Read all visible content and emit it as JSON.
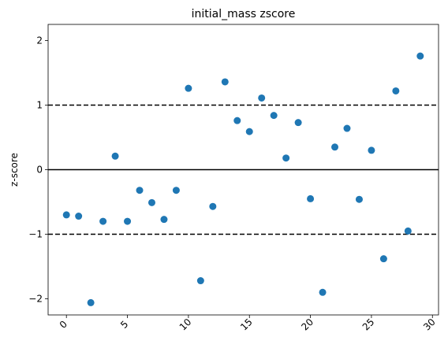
{
  "chart_data": {
    "type": "scatter",
    "title": "initial_mass zscore",
    "xlabel": "",
    "ylabel": "z-score",
    "xlim": [
      -1.5,
      30.5
    ],
    "ylim": [
      -2.25,
      2.25
    ],
    "xticks": [
      0,
      5,
      10,
      15,
      20,
      25,
      30
    ],
    "yticks": [
      -2,
      -1,
      0,
      1,
      2
    ],
    "xtick_rotation": 45,
    "grid": false,
    "reference_lines": [
      {
        "y": 0,
        "style": "solid"
      },
      {
        "y": 1,
        "style": "dashed"
      },
      {
        "y": -1,
        "style": "dashed"
      }
    ],
    "series": [
      {
        "color": "#1f77b4",
        "x": [
          0,
          1,
          2,
          3,
          4,
          5,
          6,
          7,
          8,
          9,
          10,
          11,
          12,
          13,
          14,
          15,
          16,
          17,
          18,
          19,
          20,
          21,
          22,
          23,
          24,
          25,
          26,
          27,
          28,
          29
        ],
        "y": [
          -0.7,
          -0.72,
          -2.06,
          -0.8,
          0.21,
          -0.8,
          -0.32,
          -0.51,
          -0.77,
          -0.32,
          1.26,
          -1.72,
          -0.57,
          1.36,
          0.76,
          0.59,
          1.11,
          0.84,
          0.18,
          0.73,
          -0.45,
          -1.9,
          0.35,
          0.64,
          -0.46,
          0.3,
          -1.38,
          1.22,
          -0.95,
          1.76
        ]
      }
    ]
  }
}
